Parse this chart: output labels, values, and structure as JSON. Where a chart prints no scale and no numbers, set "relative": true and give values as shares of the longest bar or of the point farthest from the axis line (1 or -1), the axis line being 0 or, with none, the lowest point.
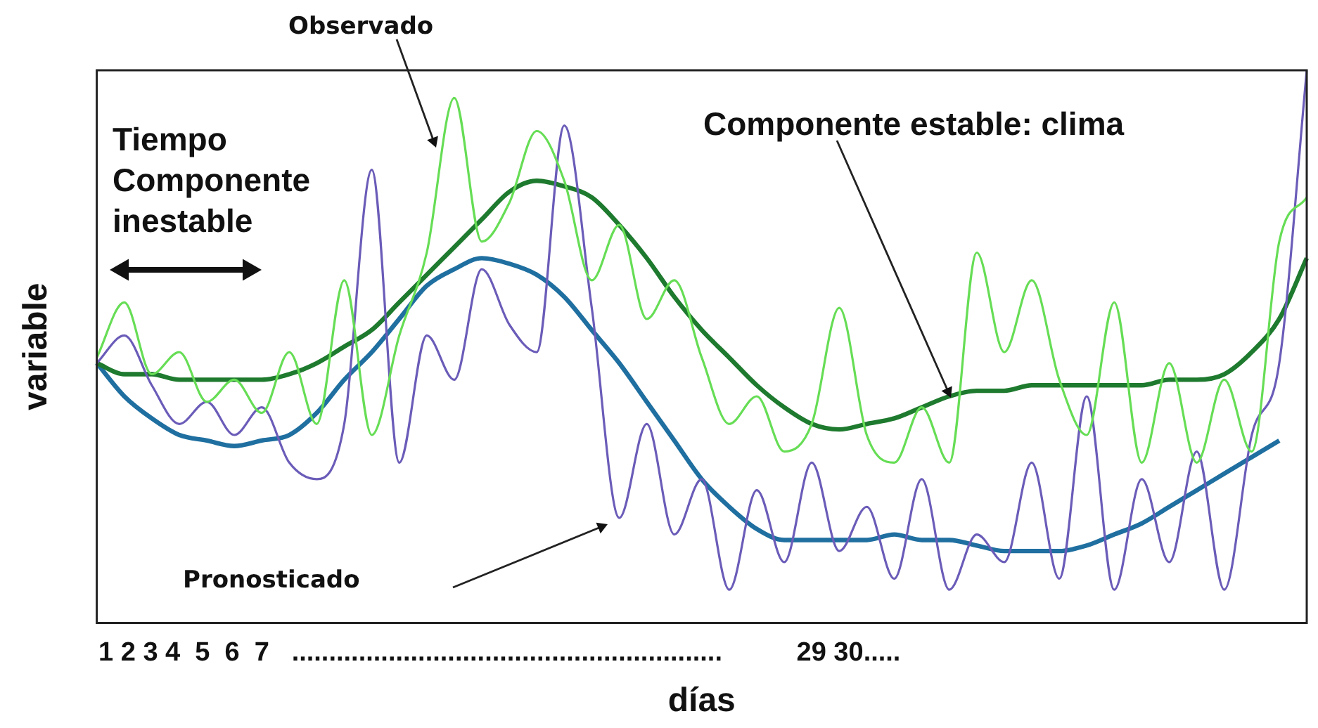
{
  "chart_data": {
    "type": "line",
    "relative": true,
    "xlabel": "días",
    "ylabel": "variable",
    "categories": [
      null,
      null,
      null,
      null,
      null,
      null,
      null,
      null,
      null,
      null,
      null,
      null,
      null,
      null,
      null,
      null,
      null,
      null,
      null,
      null,
      null,
      null,
      null,
      null,
      null,
      null,
      null,
      null,
      null,
      null,
      null,
      null,
      null,
      null,
      null,
      null,
      null,
      null,
      null,
      null,
      null,
      null,
      null,
      null,
      null
    ],
    "series": [
      {
        "color": "#66dd55",
        "values": [
          0.48,
          0.58,
          0.45,
          0.49,
          0.4,
          0.44,
          0.38,
          0.49,
          0.36,
          0.62,
          0.34,
          0.52,
          0.67,
          0.95,
          0.69,
          0.76,
          0.89,
          0.8,
          0.62,
          0.72,
          0.55,
          0.62,
          0.48,
          0.36,
          0.41,
          0.31,
          0.36,
          0.57,
          0.34,
          0.29,
          0.39,
          0.29,
          0.67,
          0.49,
          0.62,
          0.44,
          0.34,
          0.58,
          0.29,
          0.47,
          0.29,
          0.44,
          0.31,
          0.69,
          0.77
        ]
      },
      {
        "color": "#6a5cb8",
        "values": [
          0.47,
          0.52,
          0.43,
          0.36,
          0.4,
          0.34,
          0.39,
          0.29,
          0.26,
          0.36,
          0.82,
          0.29,
          0.52,
          0.44,
          0.64,
          0.54,
          0.49,
          0.9,
          0.57,
          0.19,
          0.36,
          0.16,
          0.26,
          0.06,
          0.24,
          0.11,
          0.29,
          0.13,
          0.21,
          0.08,
          0.26,
          0.06,
          0.16,
          0.11,
          0.29,
          0.08,
          0.41,
          0.06,
          0.26,
          0.11,
          0.31,
          0.06,
          0.34,
          0.47,
          1.0
        ]
      },
      {
        "color": "#1e7a2e",
        "values": [
          0.47,
          0.45,
          0.45,
          0.44,
          0.44,
          0.44,
          0.44,
          0.45,
          0.47,
          0.5,
          0.53,
          0.58,
          0.63,
          0.68,
          0.73,
          0.78,
          0.8,
          0.79,
          0.77,
          0.72,
          0.66,
          0.59,
          0.53,
          0.48,
          0.43,
          0.39,
          0.36,
          0.35,
          0.36,
          0.37,
          0.39,
          0.41,
          0.42,
          0.42,
          0.43,
          0.43,
          0.43,
          0.43,
          0.43,
          0.44,
          0.44,
          0.45,
          0.49,
          0.55,
          0.66
        ]
      },
      {
        "color": "#1f6fa0",
        "values": [
          0.47,
          0.41,
          0.37,
          0.34,
          0.33,
          0.32,
          0.33,
          0.34,
          0.38,
          0.44,
          0.49,
          0.55,
          0.61,
          0.64,
          0.66,
          0.65,
          0.63,
          0.59,
          0.53,
          0.47,
          0.4,
          0.33,
          0.26,
          0.21,
          0.17,
          0.15,
          0.15,
          0.15,
          0.15,
          0.16,
          0.15,
          0.15,
          0.14,
          0.13,
          0.13,
          0.13,
          0.14,
          0.16,
          0.18,
          0.21,
          0.24,
          0.27,
          0.3,
          0.33,
          null
        ]
      }
    ],
    "annotations": [
      "Observado",
      "Pronosticado",
      "Componente estable: clima",
      "Tiempo\nComponente\ninestable",
      "1 2 3 4  5  6  7   ..........................................................          29 30....."
    ],
    "marker": "none",
    "line_style": "solid",
    "grid": false,
    "legend": false
  }
}
